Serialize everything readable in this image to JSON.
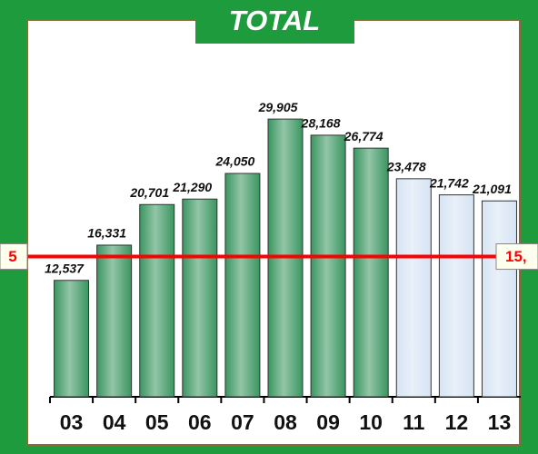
{
  "chart_data": {
    "type": "bar",
    "title": "TOTAL",
    "categories": [
      "03",
      "04",
      "05",
      "06",
      "07",
      "08",
      "09",
      "10",
      "11",
      "12",
      "13"
    ],
    "values": [
      12537,
      16331,
      20701,
      21290,
      24050,
      29905,
      28168,
      26774,
      23478,
      21742,
      21091
    ],
    "value_labels": [
      "12,537",
      "16,331",
      "20,701",
      "21,290",
      "24,050",
      "29,905",
      "28,168",
      "26,774",
      "23,478",
      "21,742",
      "21,091"
    ],
    "colors": [
      "#3a9660",
      "#3a9660",
      "#3a9660",
      "#3a9660",
      "#3a9660",
      "#3a9660",
      "#3a9660",
      "#3a9660",
      "#d6e4f4",
      "#d6e4f4",
      "#d6e4f4"
    ],
    "ylim": [
      0,
      35000
    ],
    "reference_line": {
      "value": 15100,
      "color": "#ff0000",
      "labels": [
        "5",
        "15,"
      ]
    }
  }
}
